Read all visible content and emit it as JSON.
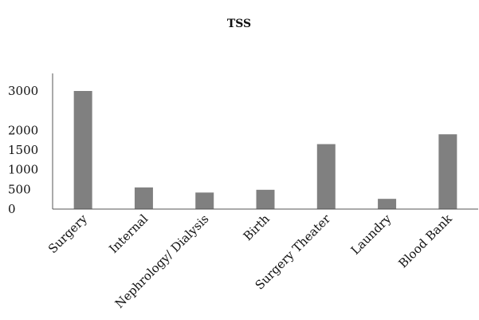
{
  "chart_data": {
    "type": "bar",
    "title": "TSS",
    "categories": [
      "Surgery",
      "Internal",
      "Nephrology/ Dialysis",
      "Birth",
      "Surgery Theater",
      "Laundry",
      "Blood Bank"
    ],
    "values": [
      3000,
      550,
      420,
      490,
      1650,
      260,
      1900
    ],
    "yticks": [
      0,
      500,
      1000,
      1500,
      2000,
      3000
    ],
    "ylim": [
      0,
      3500
    ],
    "xlabel": "",
    "ylabel": "",
    "grid": false,
    "legend": "none",
    "bar_color": "#808080"
  }
}
